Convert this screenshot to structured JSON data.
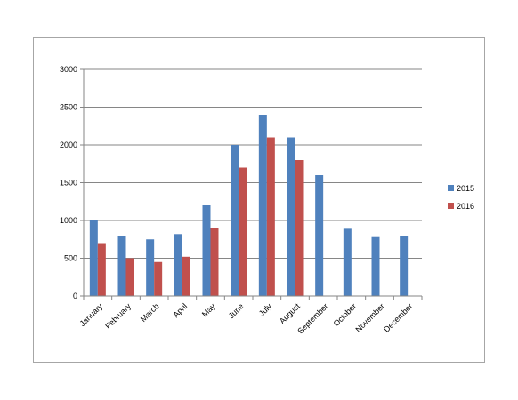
{
  "chart_data": {
    "type": "bar",
    "categories": [
      "January",
      "February",
      "March",
      "April",
      "May",
      "June",
      "July",
      "August",
      "September",
      "October",
      "November",
      "December"
    ],
    "series": [
      {
        "name": "2015",
        "color": "#4f81bd",
        "values": [
          1000,
          800,
          750,
          820,
          1200,
          2000,
          2400,
          2100,
          1600,
          890,
          780,
          800
        ]
      },
      {
        "name": "2016",
        "color": "#c0504d",
        "values": [
          700,
          500,
          450,
          520,
          900,
          1700,
          2100,
          1800,
          null,
          null,
          null,
          null
        ]
      }
    ],
    "yticks": [
      "0",
      "500",
      "1000",
      "1500",
      "2000",
      "2500",
      "3000"
    ],
    "ylim": [
      0,
      3000
    ],
    "grid": true,
    "legend_position": "right"
  }
}
